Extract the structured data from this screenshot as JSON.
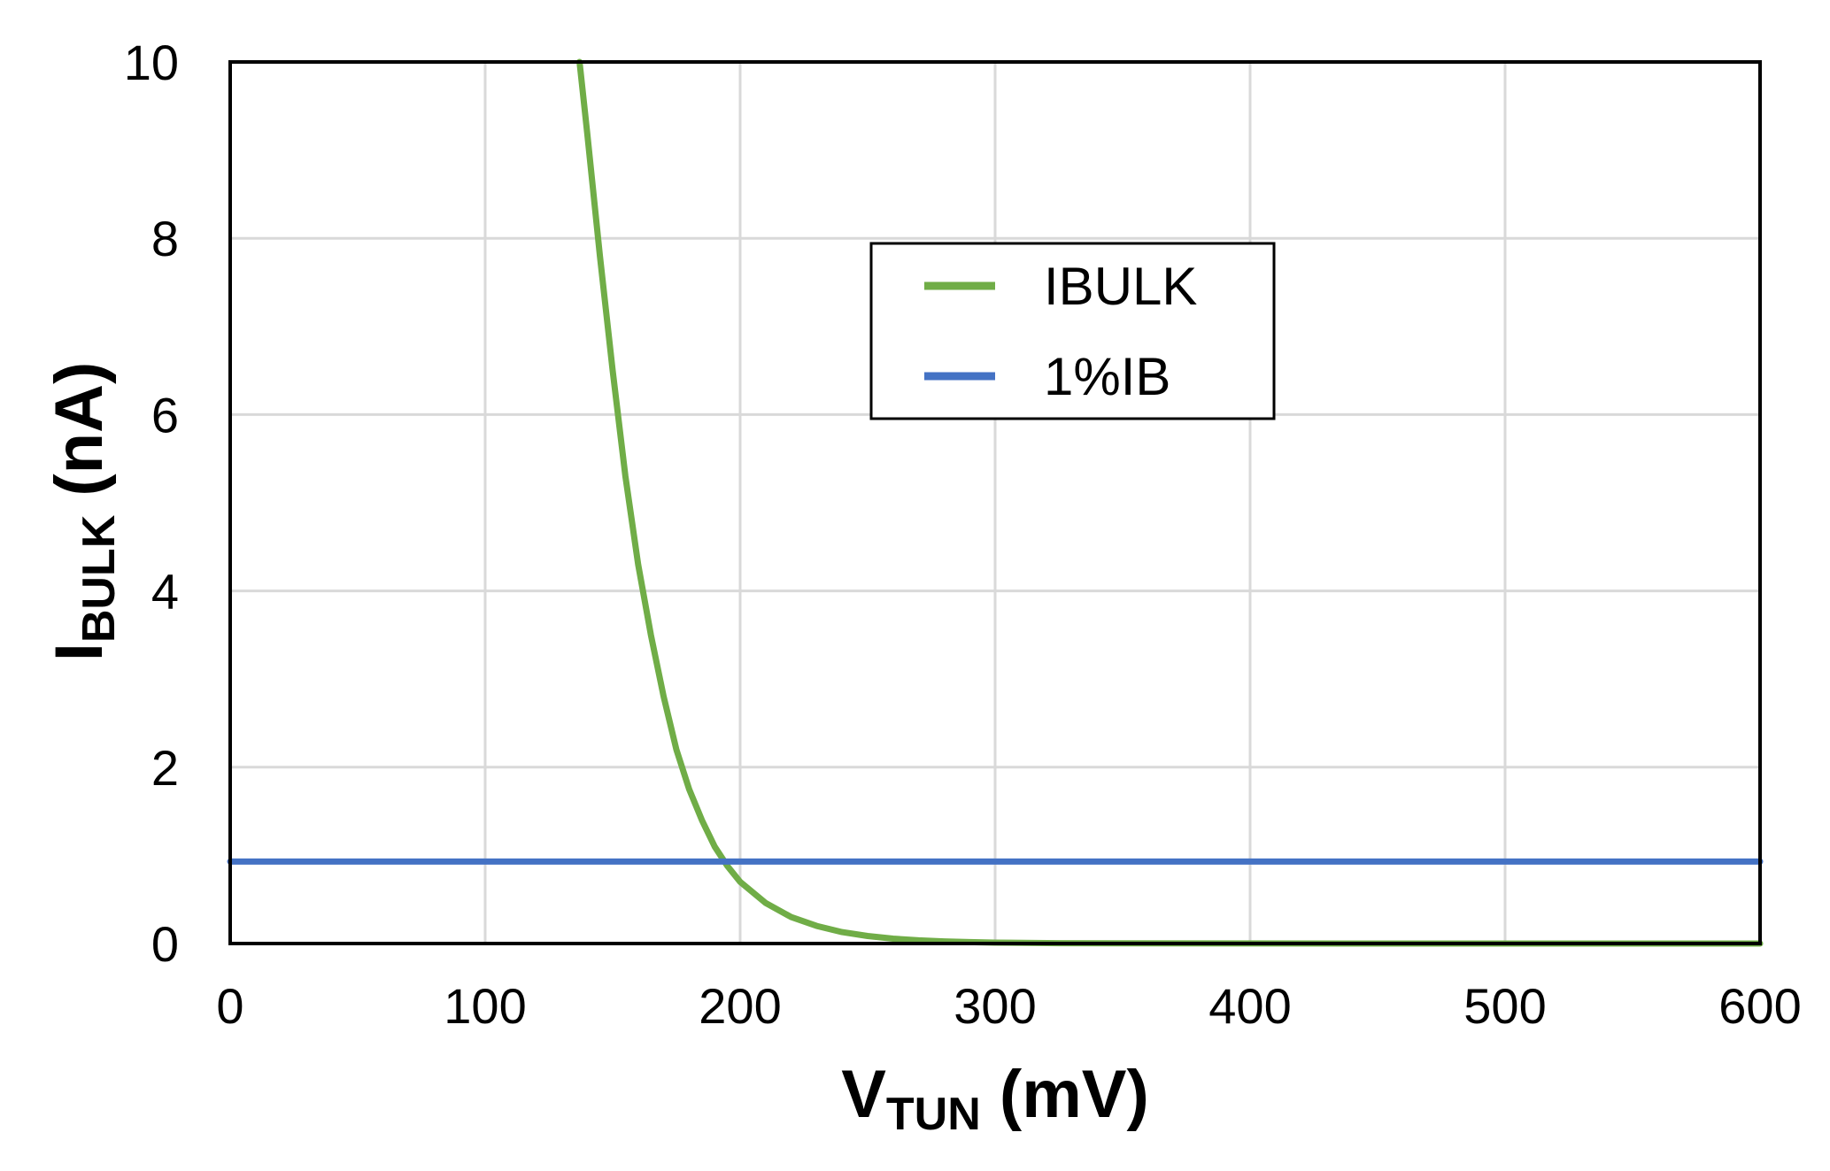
{
  "chart_data": {
    "type": "line",
    "xlabel": {
      "main": "V",
      "sub": "TUN",
      "unit": " (mV)"
    },
    "ylabel": {
      "main": "I",
      "sub": "BULK",
      "unit": " (nA)"
    },
    "xlim": [
      0,
      600
    ],
    "ylim": [
      0,
      10
    ],
    "xticks": [
      "0",
      "100",
      "200",
      "300",
      "400",
      "500",
      "600"
    ],
    "yticks": [
      "0",
      "2",
      "4",
      "6",
      "8",
      "10"
    ],
    "grid": true,
    "legend_position": "upper-center",
    "series": [
      {
        "name": "IBULK",
        "color": "#70ad47",
        "x": [
          137,
          140,
          145,
          150,
          155,
          160,
          165,
          170,
          175,
          180,
          185,
          190,
          195,
          200,
          210,
          220,
          230,
          240,
          250,
          260,
          270,
          280,
          290,
          300,
          325,
          350,
          400,
          450,
          500,
          550,
          600
        ],
        "y": [
          10.0,
          9.2,
          7.8,
          6.5,
          5.3,
          4.3,
          3.5,
          2.8,
          2.2,
          1.75,
          1.4,
          1.1,
          0.88,
          0.7,
          0.46,
          0.3,
          0.2,
          0.13,
          0.085,
          0.055,
          0.036,
          0.024,
          0.016,
          0.01,
          0.004,
          0.002,
          0.001,
          0.0005,
          0.0002,
          0.0001,
          0.0
        ]
      },
      {
        "name": "1%IB",
        "color": "#4472c4",
        "x": [
          0,
          600
        ],
        "y": [
          0.93,
          0.93
        ]
      }
    ]
  }
}
